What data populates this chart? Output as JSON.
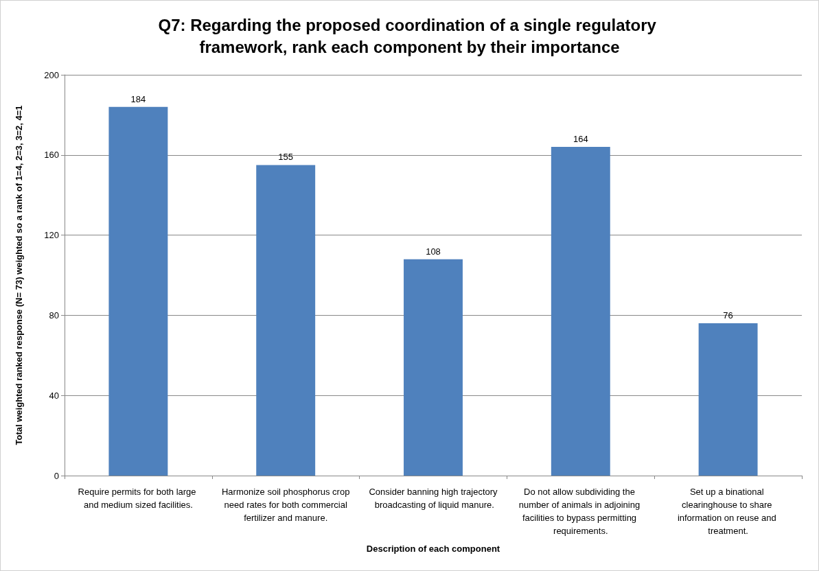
{
  "chart_data": {
    "type": "bar",
    "title": "Q7: Regarding the proposed coordination of a single regulatory framework, rank each component by their importance",
    "xlabel": "Description of each component",
    "ylabel": "Total weighted ranked response (N= 73) weighted so a rank of 1=4, 2=3, 3=2, 4=1",
    "categories": [
      "Require permits for both large and medium sized facilities.",
      "Harmonize soil phosphorus crop need rates for both commercial fertilizer and manure.",
      "Consider banning high trajectory broadcasting of liquid manure.",
      "Do not allow subdividing the number of animals in adjoining facilities to bypass permitting requirements.",
      "Set up a binational clearinghouse to share information on reuse and treatment."
    ],
    "values": [
      184,
      155,
      108,
      164,
      76
    ],
    "color": "#4f81bd",
    "ylim": [
      0,
      200
    ],
    "yticks": [
      0,
      40,
      80,
      120,
      160,
      200
    ],
    "grid": "y",
    "data_labels": true
  }
}
